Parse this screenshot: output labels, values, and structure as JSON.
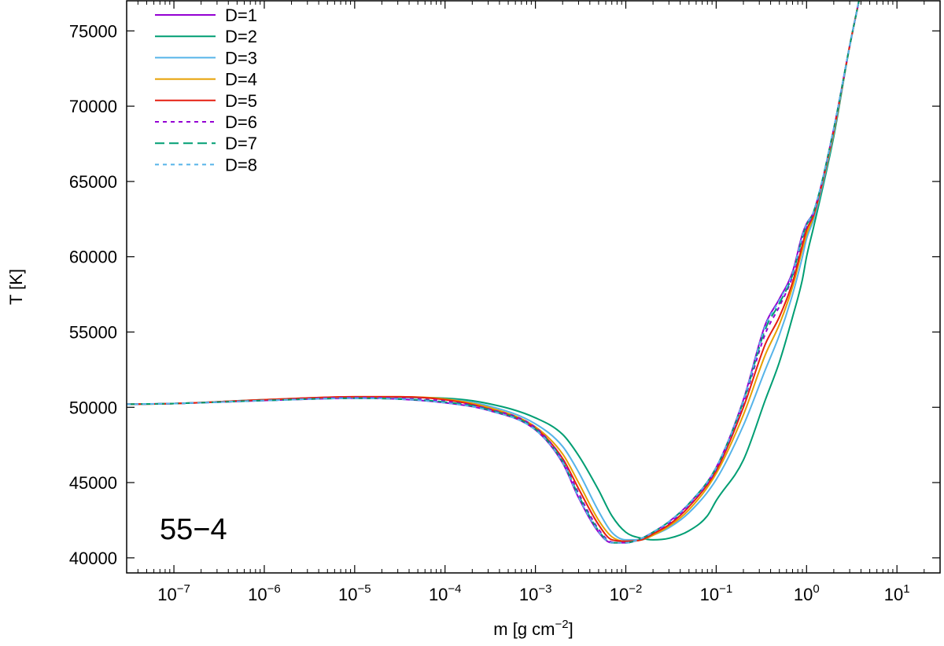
{
  "chart_data": {
    "type": "line",
    "title": "",
    "annotation": "55−4",
    "xlabel": {
      "base": "m [g cm",
      "sup": "−2",
      "close": "]"
    },
    "ylabel": "T [K]",
    "xscale": "log",
    "xlim": [
      3e-08,
      30
    ],
    "ylim": [
      39000,
      77000
    ],
    "yticks": [
      40000,
      45000,
      50000,
      55000,
      60000,
      65000,
      70000,
      75000
    ],
    "xticks": [
      {
        "exp": -7,
        "base": "10",
        "sup": "−7"
      },
      {
        "exp": -6,
        "base": "10",
        "sup": "−6"
      },
      {
        "exp": -5,
        "base": "10",
        "sup": "−5"
      },
      {
        "exp": -4,
        "base": "10",
        "sup": "−4"
      },
      {
        "exp": -3,
        "base": "10",
        "sup": "−3"
      },
      {
        "exp": -2,
        "base": "10",
        "sup": "−2"
      },
      {
        "exp": -1,
        "base": "10",
        "sup": "−1"
      },
      {
        "exp": 0,
        "base": "10",
        "sup": "0"
      },
      {
        "exp": 1,
        "base": "10",
        "sup": "1"
      }
    ],
    "legend_position": "top-left",
    "grid": false,
    "series": [
      {
        "name": "D=1",
        "color": "#9400d3",
        "dash": "solid",
        "x": [
          3e-08,
          1e-07,
          1e-06,
          1e-05,
          3e-05,
          0.0001,
          0.0003,
          0.001,
          0.002,
          0.003,
          0.005,
          0.007,
          0.01,
          0.015,
          0.02,
          0.03,
          0.05,
          0.1,
          0.2,
          0.35,
          0.5,
          0.7,
          0.9,
          1.0,
          1.2,
          2.0,
          3.0,
          3.8
        ],
        "y": [
          50200,
          50250,
          50450,
          50600,
          50550,
          50300,
          49800,
          48500,
          46300,
          44000,
          41700,
          41000,
          41000,
          41300,
          41700,
          42400,
          43600,
          46000,
          50500,
          55500,
          57200,
          59000,
          61500,
          62200,
          63000,
          68500,
          74000,
          77000
        ]
      },
      {
        "name": "D=2",
        "color": "#009e73",
        "dash": "solid",
        "x": [
          3e-08,
          1e-07,
          1e-06,
          1e-05,
          3e-05,
          0.0001,
          0.0003,
          0.001,
          0.002,
          0.003,
          0.005,
          0.007,
          0.01,
          0.015,
          0.02,
          0.03,
          0.05,
          0.08,
          0.1,
          0.2,
          0.35,
          0.5,
          0.7,
          0.9,
          1.0,
          1.2,
          2.0,
          3.0,
          3.8
        ],
        "y": [
          50200,
          50250,
          50500,
          50650,
          50650,
          50600,
          50250,
          49300,
          48200,
          46800,
          44500,
          42800,
          41700,
          41300,
          41200,
          41300,
          41800,
          42800,
          43800,
          46500,
          50500,
          53000,
          56000,
          58500,
          60000,
          62000,
          68000,
          74000,
          77000
        ]
      },
      {
        "name": "D=3",
        "color": "#56b4e9",
        "dash": "solid",
        "x": [
          3e-08,
          1e-07,
          1e-06,
          1e-05,
          3e-05,
          0.0001,
          0.0003,
          0.001,
          0.002,
          0.003,
          0.005,
          0.007,
          0.01,
          0.015,
          0.02,
          0.03,
          0.05,
          0.1,
          0.2,
          0.35,
          0.5,
          0.7,
          0.9,
          1.0,
          1.2,
          2.0,
          3.0,
          3.8
        ],
        "y": [
          50200,
          50250,
          50500,
          50650,
          50650,
          50550,
          50100,
          48900,
          47400,
          45700,
          43100,
          41700,
          41200,
          41200,
          41500,
          42000,
          43000,
          45200,
          48800,
          52500,
          54800,
          57500,
          60000,
          61200,
          62500,
          68200,
          74000,
          77000
        ]
      },
      {
        "name": "D=4",
        "color": "#e69f00",
        "dash": "solid",
        "x": [
          3e-08,
          1e-07,
          1e-06,
          1e-05,
          3e-05,
          0.0001,
          0.0003,
          0.001,
          0.002,
          0.003,
          0.005,
          0.007,
          0.01,
          0.015,
          0.02,
          0.03,
          0.05,
          0.1,
          0.2,
          0.35,
          0.5,
          0.7,
          0.9,
          1.0,
          1.2,
          2.0,
          3.0,
          3.8
        ],
        "y": [
          50200,
          50250,
          50500,
          50700,
          50700,
          50550,
          50000,
          48700,
          46900,
          45000,
          42500,
          41400,
          41100,
          41200,
          41500,
          42100,
          43200,
          45600,
          49500,
          53500,
          55500,
          58000,
          60500,
          61500,
          62700,
          68300,
          74000,
          77000
        ]
      },
      {
        "name": "D=5",
        "color": "#e51e10",
        "dash": "solid",
        "x": [
          3e-08,
          1e-07,
          1e-06,
          1e-05,
          3e-05,
          0.0001,
          0.0003,
          0.001,
          0.002,
          0.003,
          0.005,
          0.007,
          0.01,
          0.015,
          0.02,
          0.03,
          0.05,
          0.1,
          0.2,
          0.35,
          0.5,
          0.7,
          0.9,
          1.0,
          1.2,
          2.0,
          3.0,
          3.8
        ],
        "y": [
          50200,
          50250,
          50500,
          50700,
          50700,
          50500,
          49900,
          48600,
          46600,
          44600,
          42200,
          41200,
          41100,
          41200,
          41600,
          42200,
          43400,
          45800,
          50000,
          54200,
          56000,
          58300,
          60800,
          61800,
          62800,
          68400,
          74000,
          77000
        ]
      },
      {
        "name": "D=6",
        "color": "#9400d3",
        "dash": "short",
        "x": [
          3e-08,
          1e-07,
          1e-06,
          1e-05,
          3e-05,
          0.0001,
          0.0003,
          0.001,
          0.002,
          0.003,
          0.005,
          0.007,
          0.01,
          0.015,
          0.02,
          0.03,
          0.05,
          0.1,
          0.2,
          0.35,
          0.5,
          0.7,
          0.9,
          1.0,
          1.2,
          2.0,
          3.0,
          3.8
        ],
        "y": [
          50200,
          50250,
          50450,
          50650,
          50600,
          50400,
          49900,
          48650,
          46500,
          44300,
          41900,
          41050,
          41000,
          41300,
          41700,
          42300,
          43500,
          45900,
          50300,
          54900,
          56700,
          58700,
          61200,
          62000,
          62900,
          68500,
          74000,
          77000
        ]
      },
      {
        "name": "D=7",
        "color": "#009e73",
        "dash": "long",
        "x": [
          3e-08,
          1e-07,
          1e-06,
          1e-05,
          3e-05,
          0.0001,
          0.0003,
          0.001,
          0.002,
          0.003,
          0.005,
          0.007,
          0.01,
          0.015,
          0.02,
          0.03,
          0.05,
          0.1,
          0.2,
          0.35,
          0.5,
          0.7,
          0.9,
          1.0,
          1.2,
          2.0,
          3.0,
          3.8
        ],
        "y": [
          50200,
          50250,
          50450,
          50600,
          50550,
          50350,
          49850,
          48550,
          46400,
          44150,
          41800,
          41000,
          41000,
          41300,
          41700,
          42400,
          43600,
          46000,
          50400,
          55200,
          56900,
          58800,
          61300,
          62100,
          63000,
          68500,
          74000,
          77000
        ]
      },
      {
        "name": "D=8",
        "color": "#56b4e9",
        "dash": "short",
        "x": [
          3e-08,
          1e-07,
          1e-06,
          1e-05,
          3e-05,
          0.0001,
          0.0003,
          0.001,
          0.002,
          0.003,
          0.005,
          0.007,
          0.01,
          0.015,
          0.02,
          0.03,
          0.05,
          0.1,
          0.2,
          0.35,
          0.5,
          0.7,
          0.9,
          1.0,
          1.2,
          2.0,
          3.0,
          3.8
        ],
        "y": [
          50200,
          50250,
          50450,
          50600,
          50550,
          50300,
          49800,
          48500,
          46350,
          44050,
          41750,
          41000,
          41000,
          41300,
          41700,
          42400,
          43600,
          46000,
          50450,
          55400,
          57100,
          58900,
          61400,
          62150,
          63000,
          68500,
          74000,
          77000
        ]
      }
    ]
  }
}
